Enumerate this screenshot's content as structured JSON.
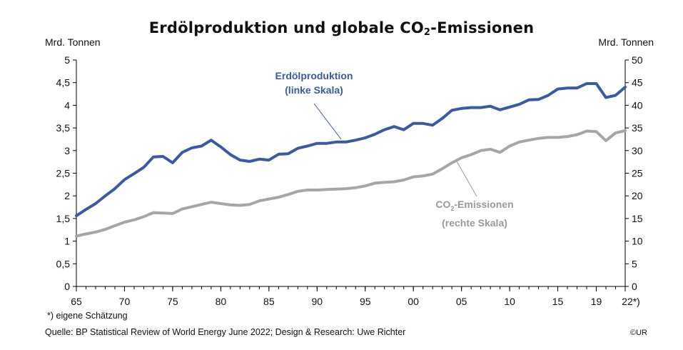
{
  "chart_data": {
    "type": "line",
    "title_main": "Erdölproduktion und globale CO",
    "title_sub": "2",
    "title_end": "-Emissionen",
    "ylabel_left": "Mrd. Tonnen",
    "ylabel_right": "Mrd. Tonnen",
    "ylim_left": [
      0,
      5
    ],
    "ylim_right": [
      0,
      50
    ],
    "yticks_left": [
      "0",
      "0,5",
      "1",
      "1,5",
      "2",
      "2,5",
      "3",
      "3,5",
      "4",
      "4,5",
      "5"
    ],
    "yticks_right": [
      "0",
      "5",
      "10",
      "15",
      "20",
      "25",
      "30",
      "35",
      "40",
      "45",
      "50"
    ],
    "xticks": [
      "65",
      "70",
      "75",
      "80",
      "85",
      "90",
      "95",
      "00",
      "05",
      "10",
      "15",
      "19",
      "22*)"
    ],
    "x": [
      1965,
      1966,
      1967,
      1968,
      1969,
      1970,
      1971,
      1972,
      1973,
      1974,
      1975,
      1976,
      1977,
      1978,
      1979,
      1980,
      1981,
      1982,
      1983,
      1984,
      1985,
      1986,
      1987,
      1988,
      1989,
      1990,
      1991,
      1992,
      1993,
      1994,
      1995,
      1996,
      1997,
      1998,
      1999,
      2000,
      2001,
      2002,
      2003,
      2004,
      2005,
      2006,
      2007,
      2008,
      2009,
      2010,
      2011,
      2012,
      2013,
      2014,
      2015,
      2016,
      2017,
      2018,
      2019,
      2020,
      2021,
      2022
    ],
    "series": [
      {
        "name_line1": "Erdölproduktion",
        "name_line2": "(linke Skala)",
        "axis": "left",
        "color": "#3a5aa6",
        "values": [
          1.56,
          1.7,
          1.83,
          2.0,
          2.16,
          2.36,
          2.49,
          2.63,
          2.86,
          2.87,
          2.73,
          2.96,
          3.06,
          3.1,
          3.23,
          3.08,
          2.91,
          2.79,
          2.76,
          2.81,
          2.79,
          2.92,
          2.93,
          3.05,
          3.1,
          3.16,
          3.16,
          3.19,
          3.19,
          3.23,
          3.28,
          3.36,
          3.46,
          3.53,
          3.46,
          3.6,
          3.6,
          3.56,
          3.71,
          3.89,
          3.93,
          3.95,
          3.95,
          3.98,
          3.9,
          3.96,
          4.02,
          4.12,
          4.13,
          4.22,
          4.36,
          4.38,
          4.38,
          4.48,
          4.48,
          4.17,
          4.22,
          4.4
        ]
      },
      {
        "name_line1_a": "CO",
        "name_line1_sub": "2",
        "name_line1_b": "-Emissionen",
        "name_line2": "(rechte Skala)",
        "axis": "right",
        "color": "#a6a6a6",
        "values": [
          11.1,
          11.6,
          12.0,
          12.6,
          13.4,
          14.2,
          14.7,
          15.4,
          16.3,
          16.2,
          16.1,
          17.1,
          17.6,
          18.1,
          18.6,
          18.3,
          18.0,
          17.9,
          18.1,
          18.9,
          19.3,
          19.7,
          20.3,
          21.0,
          21.3,
          21.3,
          21.4,
          21.5,
          21.6,
          21.8,
          22.2,
          22.8,
          23.0,
          23.1,
          23.5,
          24.2,
          24.4,
          24.8,
          26.0,
          27.3,
          28.4,
          29.1,
          30.0,
          30.3,
          29.6,
          31.0,
          31.9,
          32.3,
          32.7,
          32.9,
          32.9,
          33.1,
          33.5,
          34.3,
          34.2,
          32.2,
          33.9,
          34.4
        ]
      }
    ],
    "grid": false
  },
  "footnote": "*) eigene Schätzung",
  "source": "Quelle: BP Statistical Review of World Energy June 2022; Design & Research: Uwe Richter",
  "copyright": "©UR"
}
